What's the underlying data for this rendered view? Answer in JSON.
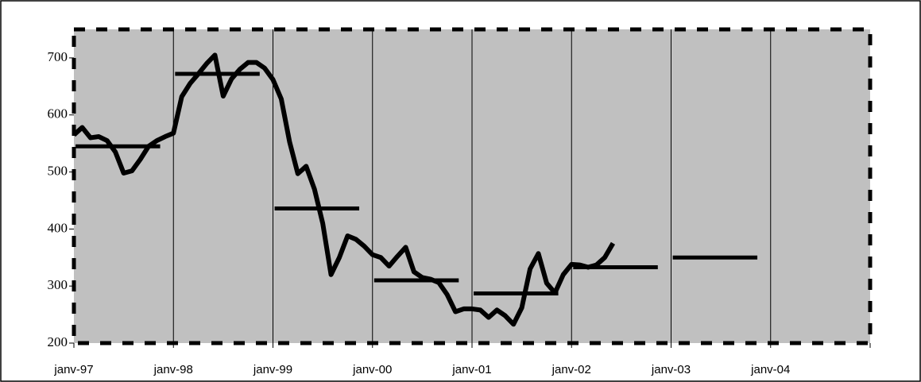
{
  "chart_data": {
    "type": "line",
    "categories": [
      "janv-97",
      null,
      null,
      null,
      null,
      null,
      null,
      null,
      null,
      null,
      null,
      null,
      "janv-98",
      null,
      null,
      null,
      null,
      null,
      null,
      null,
      null,
      null,
      null,
      null,
      "janv-99",
      null,
      null,
      null,
      null,
      null,
      null,
      null,
      null,
      null,
      null,
      null,
      "janv-00",
      null,
      null,
      null,
      null,
      null,
      null,
      null,
      null,
      null,
      null,
      null,
      "janv-01",
      null,
      null,
      null,
      null,
      null,
      null,
      null,
      null,
      null,
      null,
      null,
      "janv-02",
      null,
      null,
      null,
      null,
      null,
      null,
      null,
      null,
      null,
      null,
      null,
      "janv-03",
      null,
      null,
      null,
      null,
      null,
      null,
      null,
      null,
      null,
      null,
      null,
      "janv-04",
      null,
      null,
      null,
      null,
      null,
      null,
      null,
      null,
      null,
      null,
      null,
      null
    ],
    "series": [
      {
        "color": "#000000",
        "values": [
          565,
          578,
          560,
          562,
          555,
          535,
          498,
          502,
          522,
          545,
          555,
          562,
          568,
          632,
          655,
          672,
          690,
          705,
          633,
          663,
          680,
          692,
          692,
          682,
          662,
          628,
          553,
          497,
          510,
          470,
          410,
          320,
          350,
          388,
          382,
          370,
          355,
          350,
          335,
          352,
          368,
          325,
          315,
          312,
          306,
          285,
          255,
          260,
          260,
          258,
          245,
          258,
          248,
          233,
          262,
          330,
          357,
          305,
          288,
          320,
          338,
          337,
          333,
          337,
          350,
          375,
          null,
          null,
          null,
          null,
          null,
          null,
          null,
          null,
          null,
          null,
          null,
          null,
          null,
          null,
          null,
          null,
          null,
          null,
          null,
          null,
          null,
          null,
          null,
          null,
          null,
          null,
          null,
          null,
          null,
          null,
          null
        ]
      }
    ],
    "yearly_values": [
      545,
      672,
      436,
      310,
      287,
      333,
      350
    ],
    "ylim": [
      200,
      750
    ],
    "yticks": [
      200,
      300,
      400,
      500,
      600,
      700
    ],
    "background": "#c0c0c0"
  }
}
